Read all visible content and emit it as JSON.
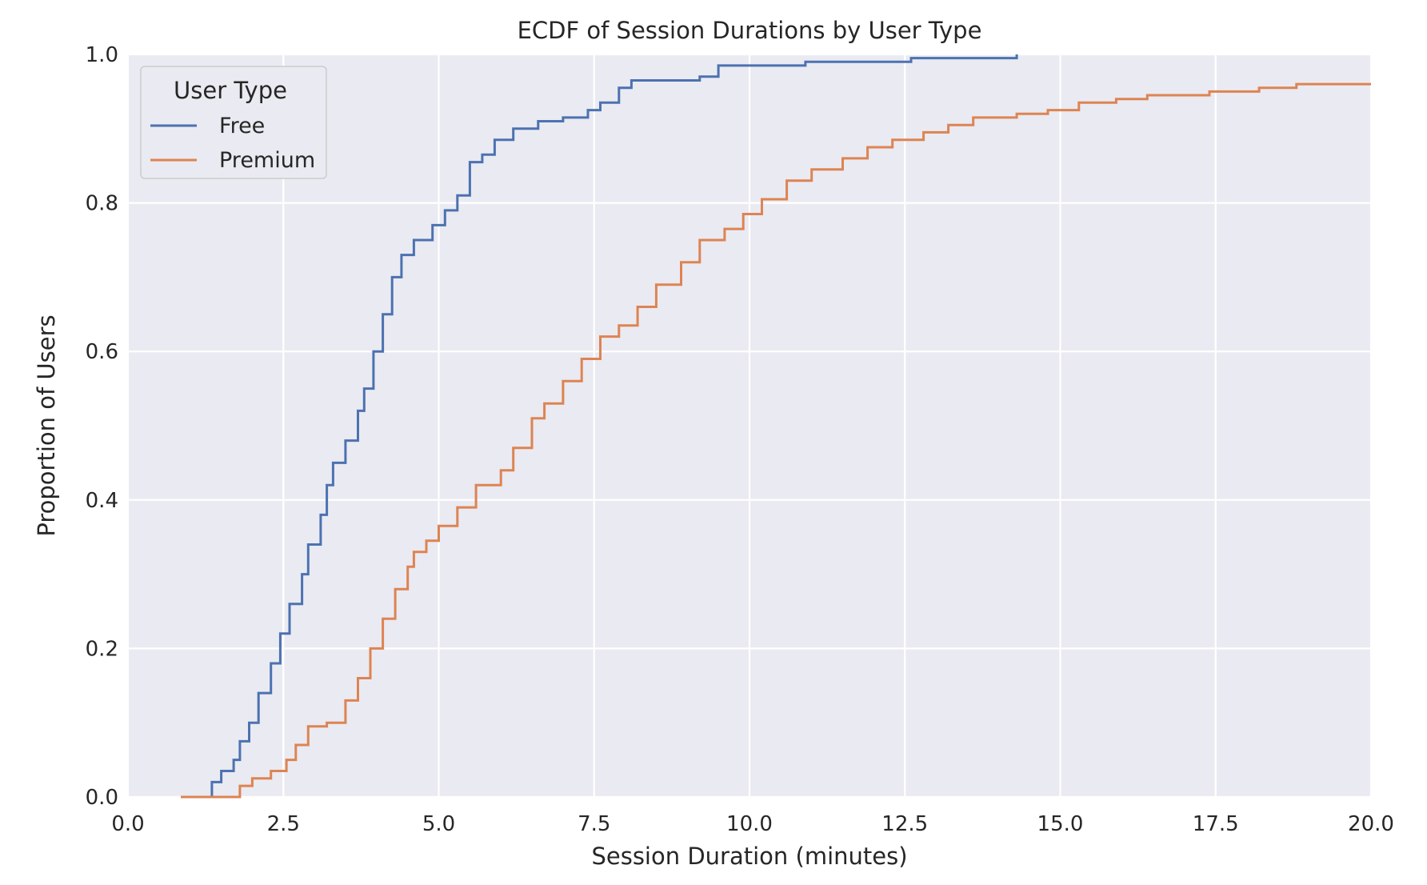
{
  "chart_data": {
    "type": "line",
    "subtype": "ecdf",
    "title": "ECDF of Session Durations by User Type",
    "xlabel": "Session Duration (minutes)",
    "ylabel": "Proportion of Users",
    "xlim": [
      0,
      20
    ],
    "ylim": [
      0,
      1
    ],
    "xticks": [
      "0.0",
      "2.5",
      "5.0",
      "7.5",
      "10.0",
      "12.5",
      "15.0",
      "17.5",
      "20.0"
    ],
    "yticks": [
      "0.0",
      "0.2",
      "0.4",
      "0.6",
      "0.8",
      "1.0"
    ],
    "grid": true,
    "background": "#eaeaf2",
    "legend": {
      "title": "User Type",
      "position": "top-left"
    },
    "series": [
      {
        "name": "Free",
        "color": "#4c72b0",
        "points": [
          [
            0.9,
            0.0
          ],
          [
            1.3,
            0.0
          ],
          [
            1.35,
            0.02
          ],
          [
            1.5,
            0.035
          ],
          [
            1.7,
            0.05
          ],
          [
            1.8,
            0.075
          ],
          [
            1.95,
            0.1
          ],
          [
            2.1,
            0.14
          ],
          [
            2.3,
            0.18
          ],
          [
            2.45,
            0.22
          ],
          [
            2.6,
            0.26
          ],
          [
            2.8,
            0.3
          ],
          [
            2.9,
            0.34
          ],
          [
            3.1,
            0.38
          ],
          [
            3.2,
            0.42
          ],
          [
            3.3,
            0.45
          ],
          [
            3.5,
            0.48
          ],
          [
            3.7,
            0.52
          ],
          [
            3.8,
            0.55
          ],
          [
            3.95,
            0.6
          ],
          [
            4.1,
            0.65
          ],
          [
            4.25,
            0.7
          ],
          [
            4.4,
            0.73
          ],
          [
            4.6,
            0.75
          ],
          [
            4.9,
            0.77
          ],
          [
            5.1,
            0.79
          ],
          [
            5.3,
            0.81
          ],
          [
            5.5,
            0.855
          ],
          [
            5.7,
            0.865
          ],
          [
            5.9,
            0.885
          ],
          [
            6.2,
            0.9
          ],
          [
            6.6,
            0.91
          ],
          [
            7.0,
            0.915
          ],
          [
            7.4,
            0.925
          ],
          [
            7.6,
            0.935
          ],
          [
            7.9,
            0.955
          ],
          [
            8.1,
            0.965
          ],
          [
            9.2,
            0.97
          ],
          [
            9.5,
            0.985
          ],
          [
            10.5,
            0.985
          ],
          [
            10.9,
            0.99
          ],
          [
            12.6,
            0.995
          ],
          [
            14.3,
            1.0
          ]
        ]
      },
      {
        "name": "Premium",
        "color": "#dd8452",
        "points": [
          [
            0.85,
            0.0
          ],
          [
            1.6,
            0.0
          ],
          [
            1.8,
            0.015
          ],
          [
            2.0,
            0.025
          ],
          [
            2.3,
            0.035
          ],
          [
            2.55,
            0.05
          ],
          [
            2.7,
            0.07
          ],
          [
            2.9,
            0.095
          ],
          [
            3.2,
            0.1
          ],
          [
            3.5,
            0.13
          ],
          [
            3.7,
            0.16
          ],
          [
            3.9,
            0.2
          ],
          [
            4.1,
            0.24
          ],
          [
            4.3,
            0.28
          ],
          [
            4.5,
            0.31
          ],
          [
            4.6,
            0.33
          ],
          [
            4.8,
            0.345
          ],
          [
            5.0,
            0.365
          ],
          [
            5.3,
            0.39
          ],
          [
            5.6,
            0.42
          ],
          [
            6.0,
            0.44
          ],
          [
            6.2,
            0.47
          ],
          [
            6.5,
            0.51
          ],
          [
            6.7,
            0.53
          ],
          [
            7.0,
            0.56
          ],
          [
            7.3,
            0.59
          ],
          [
            7.6,
            0.62
          ],
          [
            7.9,
            0.635
          ],
          [
            8.2,
            0.66
          ],
          [
            8.5,
            0.69
          ],
          [
            8.9,
            0.72
          ],
          [
            9.2,
            0.75
          ],
          [
            9.6,
            0.765
          ],
          [
            9.9,
            0.785
          ],
          [
            10.2,
            0.805
          ],
          [
            10.6,
            0.83
          ],
          [
            11.0,
            0.845
          ],
          [
            11.5,
            0.86
          ],
          [
            11.9,
            0.875
          ],
          [
            12.3,
            0.885
          ],
          [
            12.8,
            0.895
          ],
          [
            13.2,
            0.905
          ],
          [
            13.6,
            0.915
          ],
          [
            14.3,
            0.92
          ],
          [
            14.8,
            0.925
          ],
          [
            15.3,
            0.935
          ],
          [
            15.9,
            0.94
          ],
          [
            16.4,
            0.945
          ],
          [
            17.4,
            0.95
          ],
          [
            18.2,
            0.955
          ],
          [
            18.8,
            0.96
          ],
          [
            20.0,
            0.96
          ]
        ]
      }
    ]
  }
}
